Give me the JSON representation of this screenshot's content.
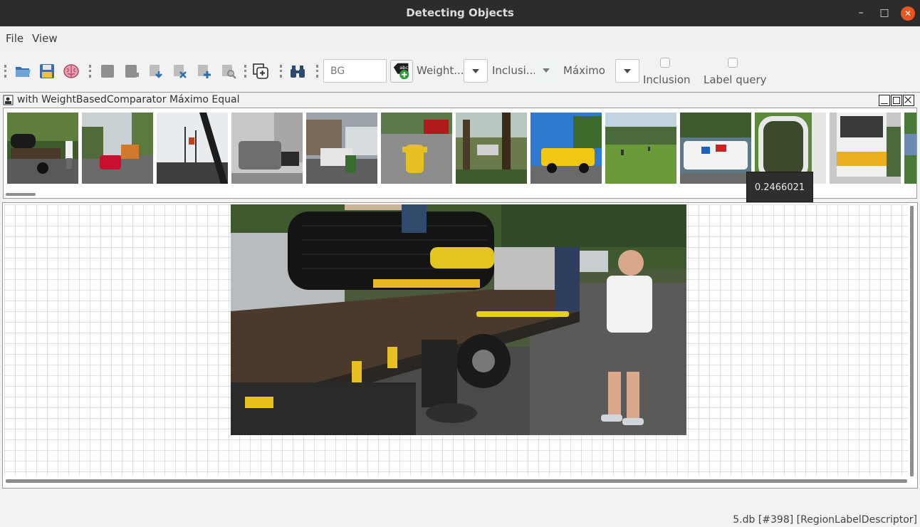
{
  "window": {
    "title": "Detecting Objects"
  },
  "menu": {
    "items": [
      "File",
      "View"
    ]
  },
  "toolbar": {
    "search_value": "BG",
    "comparator_label": "Weight...",
    "inclusion_label": "Inclusi...",
    "aggregation_label": "Máximo",
    "inclusion_checkbox_label": "Inclusion",
    "label_query_checkbox_label": "Label query"
  },
  "strip_panel": {
    "title": "with WeightBasedComparator Máximo Equal"
  },
  "tooltip": {
    "value": "0.2466021"
  },
  "status": {
    "text": "5.db [#398] [RegionLabelDescriptor]"
  },
  "colors": {
    "titlebar": "#2c2c2c",
    "close_button": "#e95420",
    "accent_blue": "#2f6db5"
  },
  "icons": {
    "toolbar": [
      "open-folder-icon",
      "save-disk-icon",
      "brain-icon",
      "database-icon",
      "db-export-icon",
      "db-import-icon",
      "db-delete-icon",
      "db-add-icon",
      "db-search-icon",
      "add-region-icon",
      "binoculars-icon",
      "add-label-icon"
    ]
  }
}
